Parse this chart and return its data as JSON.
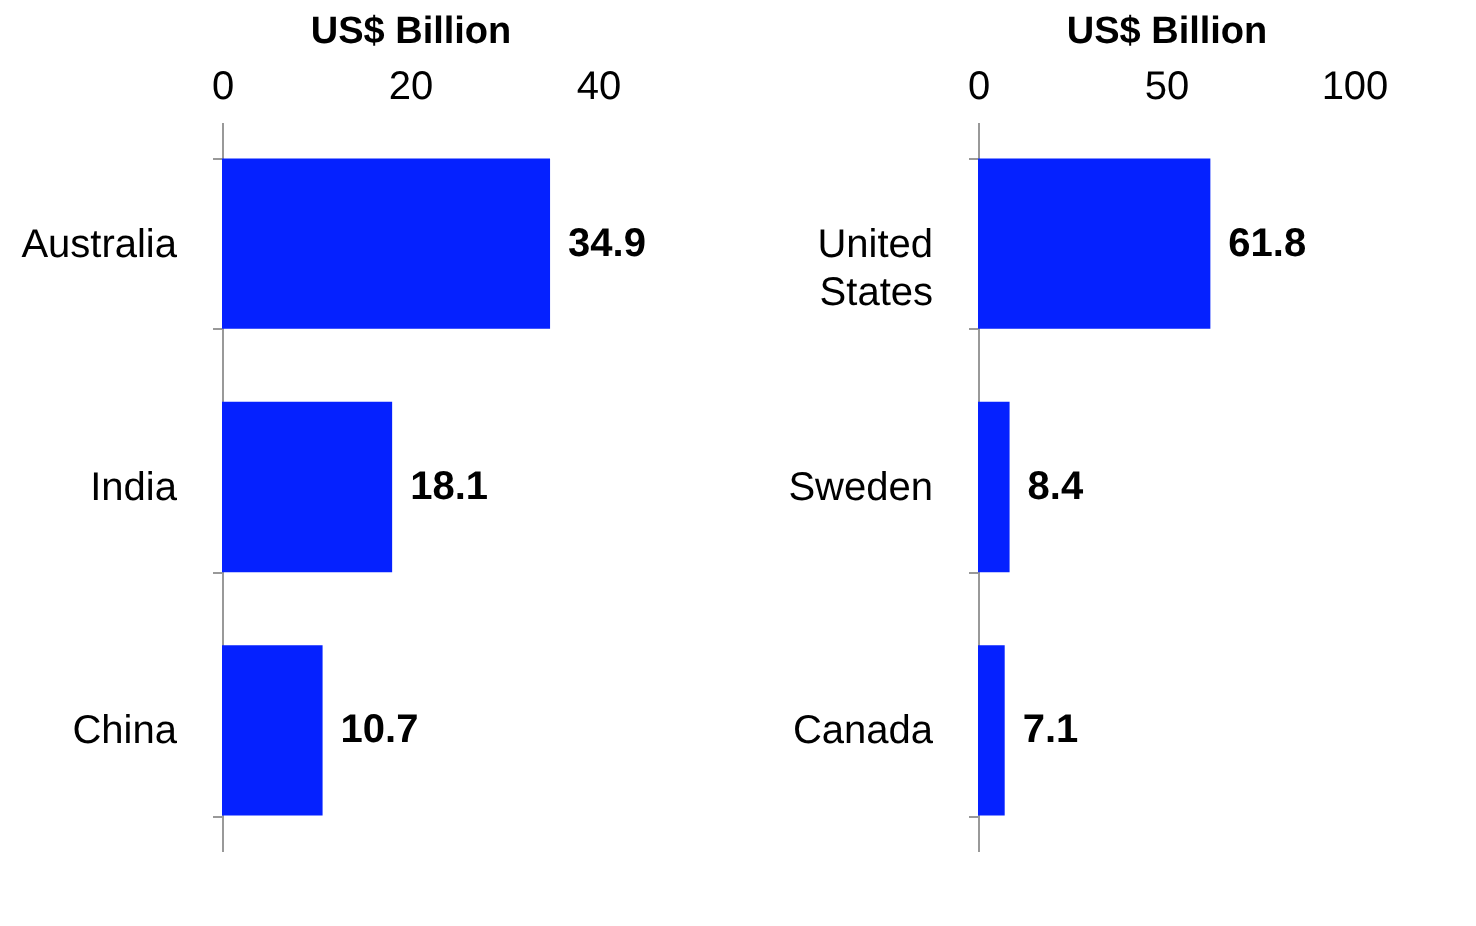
{
  "chart_data": [
    {
      "type": "bar",
      "orientation": "horizontal",
      "xlabel": "US$ Billion",
      "categories": [
        "Australia",
        "India",
        "China"
      ],
      "values": [
        34.9,
        18.1,
        10.7
      ],
      "color": "#0521ff",
      "xlim": [
        0,
        40
      ],
      "xticks": [
        0,
        20,
        40
      ],
      "data_labels": true,
      "grid": false
    },
    {
      "type": "bar",
      "orientation": "horizontal",
      "xlabel": "US$ Billion",
      "categories": [
        "United States",
        "Sweden",
        "Canada"
      ],
      "values": [
        61.8,
        8.4,
        7.1
      ],
      "color": "#0521ff",
      "xlim": [
        0,
        100
      ],
      "xticks": [
        0,
        50,
        100
      ],
      "data_labels": true,
      "grid": false
    }
  ]
}
